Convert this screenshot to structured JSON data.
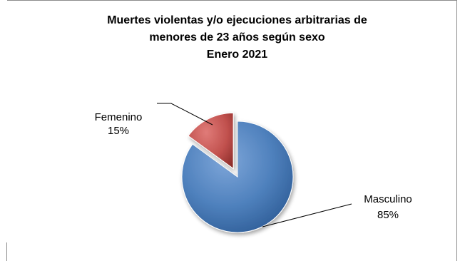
{
  "chart_data": {
    "type": "pie",
    "title_lines": [
      "Muertes violentas y/o ejecuciones arbitrarias de",
      "menores de 23 años según sexo",
      "Enero 2021"
    ],
    "series": [
      {
        "name": "Femenino",
        "value": 15,
        "label": "15%",
        "color": "#c0504d"
      },
      {
        "name": "Masculino",
        "value": 85,
        "label": "85%",
        "color": "#4f81bd"
      }
    ],
    "exploded_slice": "Femenino",
    "legend": "none",
    "style": "3d-shaded"
  }
}
